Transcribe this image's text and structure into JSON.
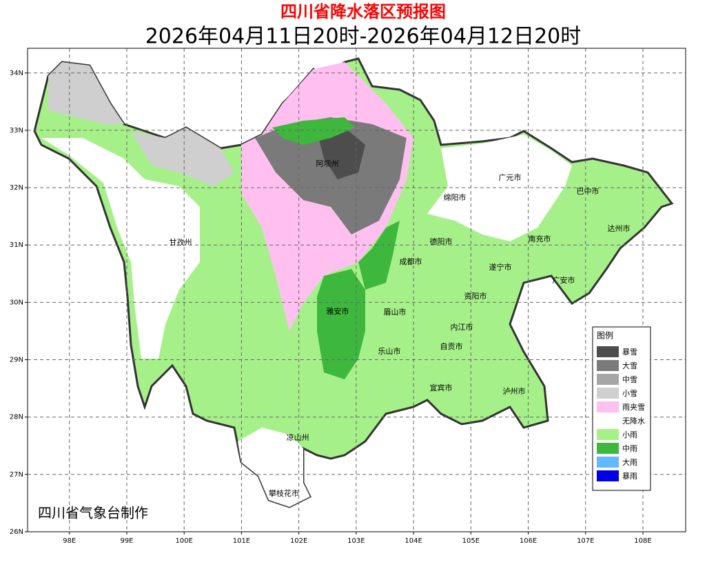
{
  "header": {
    "title": "四川省降水落区预报图",
    "subtitle": "2026年04月11日20时-2026年04月12日20时"
  },
  "map": {
    "xlim": [
      97.27,
      108.745
    ],
    "ylim": [
      26,
      34.43
    ],
    "grid": true,
    "xticks": [
      {
        "value": 98,
        "label": "98E"
      },
      {
        "value": 99,
        "label": "99E"
      },
      {
        "value": 100,
        "label": "100E"
      },
      {
        "value": 101,
        "label": "101E"
      },
      {
        "value": 102,
        "label": "102E"
      },
      {
        "value": 103,
        "label": "103E"
      },
      {
        "value": 104,
        "label": "104E"
      },
      {
        "value": 105,
        "label": "105E"
      },
      {
        "value": 106,
        "label": "106E"
      },
      {
        "value": 107,
        "label": "107E"
      },
      {
        "value": 108,
        "label": "108E"
      }
    ],
    "yticks": [
      {
        "value": 26,
        "label": "26N"
      },
      {
        "value": 27,
        "label": "27N"
      },
      {
        "value": 28,
        "label": "28N"
      },
      {
        "value": 29,
        "label": "29N"
      },
      {
        "value": 30,
        "label": "30N"
      },
      {
        "value": 31,
        "label": "31N"
      },
      {
        "value": 32,
        "label": "32N"
      },
      {
        "value": 33,
        "label": "33N"
      },
      {
        "value": 34,
        "label": "34N"
      }
    ],
    "cities": [
      "阿坝州",
      "广元市",
      "巴中市",
      "绵阳市",
      "达州市",
      "甘孜州",
      "德阳市",
      "南充市",
      "成都市",
      "遂宁市",
      "广安市",
      "资阳市",
      "雅安市",
      "眉山市",
      "内江市",
      "自贡市",
      "乐山市",
      "宜宾市",
      "泸州市",
      "凉山州",
      "攀枝花市"
    ],
    "credit": "四川省气象台制作"
  },
  "legend": {
    "title": "图例",
    "items": [
      {
        "label": "暴雪",
        "color": "#4d4d4d"
      },
      {
        "label": "大雪",
        "color": "#7a7a7a"
      },
      {
        "label": "中雪",
        "color": "#a6a6a6"
      },
      {
        "label": "小雪",
        "color": "#cfcfcf"
      },
      {
        "label": "雨夹雪",
        "color": "#ffc0f0"
      },
      {
        "label": "无降水",
        "color": "#ffffff"
      },
      {
        "label": "小雨",
        "color": "#a6f08a"
      },
      {
        "label": "中雨",
        "color": "#3db83d"
      },
      {
        "label": "大雨",
        "color": "#63b8ff"
      },
      {
        "label": "暴雨",
        "color": "#0000e6"
      }
    ]
  }
}
